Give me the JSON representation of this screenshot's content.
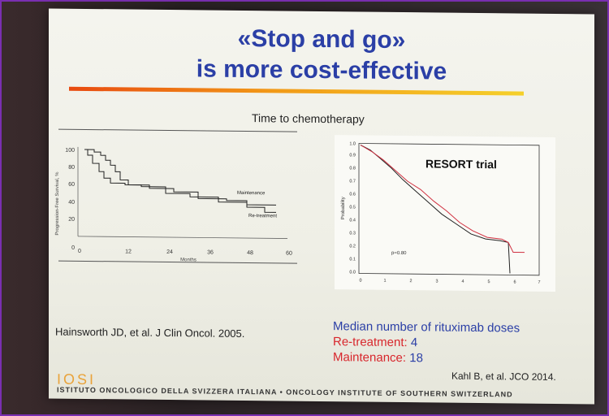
{
  "title_line1": "«Stop and go»",
  "title_line2": "is more cost-effective",
  "subtitle": "Time to chemotherapy",
  "left_chart": {
    "ylabel": "Progression-Free Survival, %",
    "xlabel": "Months",
    "yticks": [
      "0",
      "20",
      "40",
      "60",
      "80",
      "100"
    ],
    "xticks": [
      "0",
      "12",
      "24",
      "36",
      "48",
      "60"
    ],
    "label_maintenance": "Maintenance",
    "label_retreatment": "Re-treatment"
  },
  "right_chart": {
    "title": "RESORT trial",
    "ylabel": "Probability",
    "pvalue": "p=0.80",
    "yticks": [
      "0.0",
      "0.1",
      "0.2",
      "0.3",
      "0.4",
      "0.5",
      "0.6",
      "0.7",
      "0.8",
      "0.9",
      "1.0"
    ],
    "xticks": [
      "0",
      "1",
      "2",
      "3",
      "4",
      "5",
      "6",
      "7"
    ],
    "legend_line_colors": [
      "#222222",
      "#d03040"
    ]
  },
  "citation_left": "Hainsworth JD, et al. J Clin Oncol. 2005.",
  "median": {
    "heading": "Median number of rituximab doses",
    "retreatment_label": "Re-treatment:",
    "retreatment_value": "4",
    "maintenance_label": "Maintenance:",
    "maintenance_value": "18"
  },
  "citation_right": "Kahl B, et al. JCO 2014.",
  "logo_text": "IOSI",
  "footer": "ISTITUTO ONCOLOGICO DELLA SVIZZERA ITALIANA  •  ONCOLOGY INSTITUTE OF SOUTHERN SWITZERLAND",
  "colors": {
    "title": "#2b3fa6",
    "accent_red": "#d8262c",
    "logo": "#e9a33a"
  }
}
